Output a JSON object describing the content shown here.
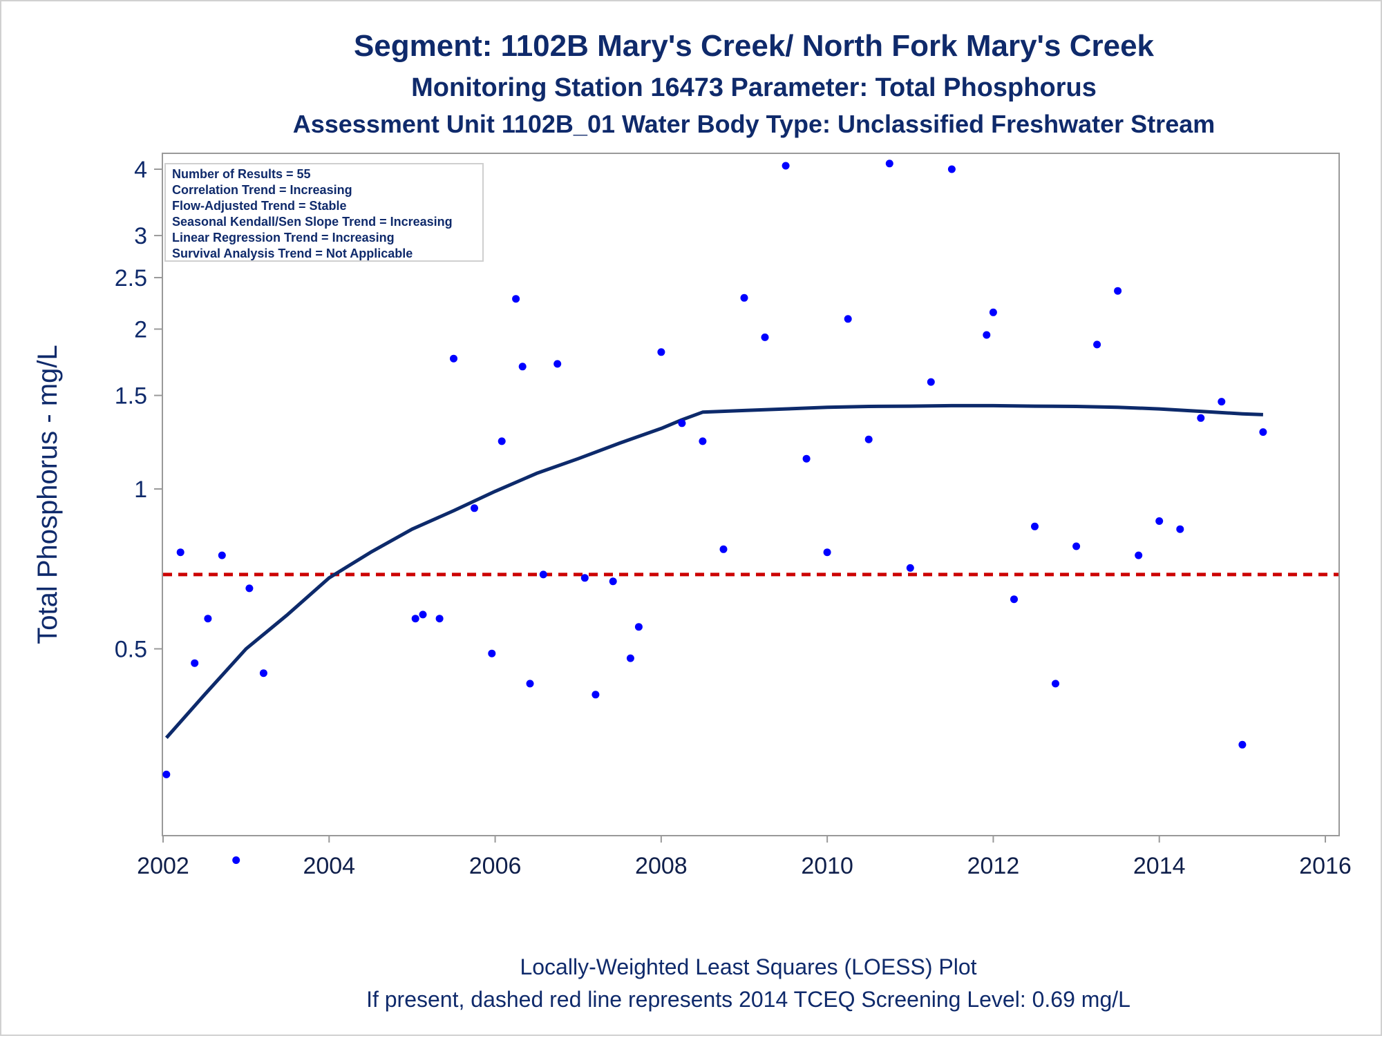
{
  "chart_data": {
    "type": "scatter",
    "title": "Segment: 1102B  Mary's Creek/ North Fork Mary's Creek",
    "subtitle1": "Monitoring Station 16473 Parameter: Total Phosphorus",
    "subtitle2": "Assessment Unit 1102B_01   Water Body Type: Unclassified Freshwater Stream",
    "ylabel": "Total Phosphorus - mg/L",
    "footnote1": "Locally-Weighted Least Squares (LOESS) Plot",
    "footnote2": "If present, dashed red line represents 2014 TCEQ Screening Level: 0.69 mg/L",
    "y_scale": "log",
    "xlim": [
      2002,
      2016
    ],
    "ylim": [
      0.2,
      4.3
    ],
    "xticks": [
      "2002",
      "2004",
      "2006",
      "2008",
      "2010",
      "2012",
      "2014",
      "2016"
    ],
    "yticks": [
      {
        "value": 0.5,
        "label": "0.5"
      },
      {
        "value": 1,
        "label": "1"
      },
      {
        "value": 1.5,
        "label": "1.5"
      },
      {
        "value": 2,
        "label": "2"
      },
      {
        "value": 2.5,
        "label": "2.5"
      },
      {
        "value": 3,
        "label": "3"
      },
      {
        "value": 4,
        "label": "4"
      }
    ],
    "stats_box": [
      "Number of Results = 55",
      "Correlation Trend = Increasing",
      "Flow-Adjusted Trend = Stable",
      "Seasonal Kendall/Sen Slope Trend = Increasing",
      "Linear Regression Trend = Increasing",
      "Survival Analysis Trend = Not Applicable"
    ],
    "screening_level": 0.69,
    "colors": {
      "points": "#0000ff",
      "loess": "#0d2a6b",
      "screening": "#cc0000",
      "text": "#0f2a6b",
      "axis": "#999999"
    },
    "legend_position": "top-left",
    "grid": false,
    "series": [
      {
        "values": [
          [
            2002.04,
            0.29
          ],
          [
            2002.21,
            0.76
          ],
          [
            2002.38,
            0.47
          ],
          [
            2002.54,
            0.57
          ],
          [
            2002.71,
            0.75
          ],
          [
            2002.88,
            0.2
          ],
          [
            2003.04,
            0.65
          ],
          [
            2003.21,
            0.45
          ],
          [
            2005.04,
            0.57
          ],
          [
            2005.13,
            0.58
          ],
          [
            2005.33,
            0.57
          ],
          [
            2005.5,
            1.76
          ],
          [
            2005.75,
            0.92
          ],
          [
            2005.96,
            0.49
          ],
          [
            2006.08,
            1.23
          ],
          [
            2006.25,
            2.28
          ],
          [
            2006.33,
            1.7
          ],
          [
            2006.42,
            0.43
          ],
          [
            2006.58,
            0.69
          ],
          [
            2006.75,
            1.72
          ],
          [
            2007.08,
            0.68
          ],
          [
            2007.21,
            0.41
          ],
          [
            2007.42,
            0.67
          ],
          [
            2007.63,
            0.48
          ],
          [
            2007.73,
            0.55
          ],
          [
            2008.0,
            1.81
          ],
          [
            2008.25,
            1.33
          ],
          [
            2008.5,
            1.23
          ],
          [
            2008.75,
            0.77
          ],
          [
            2009.0,
            2.29
          ],
          [
            2009.25,
            1.93
          ],
          [
            2009.5,
            4.06
          ],
          [
            2009.75,
            1.14
          ],
          [
            2010.0,
            0.76
          ],
          [
            2010.25,
            2.09
          ],
          [
            2010.5,
            1.24
          ],
          [
            2010.75,
            4.1
          ],
          [
            2011.0,
            0.71
          ],
          [
            2011.25,
            1.59
          ],
          [
            2011.5,
            4.0
          ],
          [
            2011.92,
            1.95
          ],
          [
            2012.0,
            2.15
          ],
          [
            2012.25,
            0.62
          ],
          [
            2012.5,
            0.85
          ],
          [
            2012.75,
            0.43
          ],
          [
            2013.0,
            0.78
          ],
          [
            2013.25,
            1.87
          ],
          [
            2013.5,
            2.36
          ],
          [
            2013.75,
            0.75
          ],
          [
            2014.0,
            0.87
          ],
          [
            2014.25,
            0.84
          ],
          [
            2014.5,
            1.36
          ],
          [
            2014.75,
            1.46
          ],
          [
            2015.0,
            0.33
          ],
          [
            2015.25,
            1.28
          ]
        ]
      }
    ],
    "loess": [
      [
        2002.04,
        0.34
      ],
      [
        2002.5,
        0.41
      ],
      [
        2003.0,
        0.5
      ],
      [
        2003.5,
        0.58
      ],
      [
        2004.0,
        0.68
      ],
      [
        2004.5,
        0.76
      ],
      [
        2005.0,
        0.84
      ],
      [
        2005.5,
        0.91
      ],
      [
        2006.0,
        0.99
      ],
      [
        2006.5,
        1.07
      ],
      [
        2007.0,
        1.14
      ],
      [
        2007.5,
        1.22
      ],
      [
        2008.0,
        1.3
      ],
      [
        2008.25,
        1.35
      ],
      [
        2008.5,
        1.395
      ],
      [
        2009.0,
        1.405
      ],
      [
        2009.5,
        1.415
      ],
      [
        2010.0,
        1.425
      ],
      [
        2010.5,
        1.43
      ],
      [
        2011.0,
        1.432
      ],
      [
        2011.5,
        1.435
      ],
      [
        2012.0,
        1.435
      ],
      [
        2012.5,
        1.432
      ],
      [
        2013.0,
        1.43
      ],
      [
        2013.5,
        1.425
      ],
      [
        2014.0,
        1.415
      ],
      [
        2014.5,
        1.4
      ],
      [
        2015.0,
        1.385
      ],
      [
        2015.25,
        1.38
      ]
    ]
  }
}
